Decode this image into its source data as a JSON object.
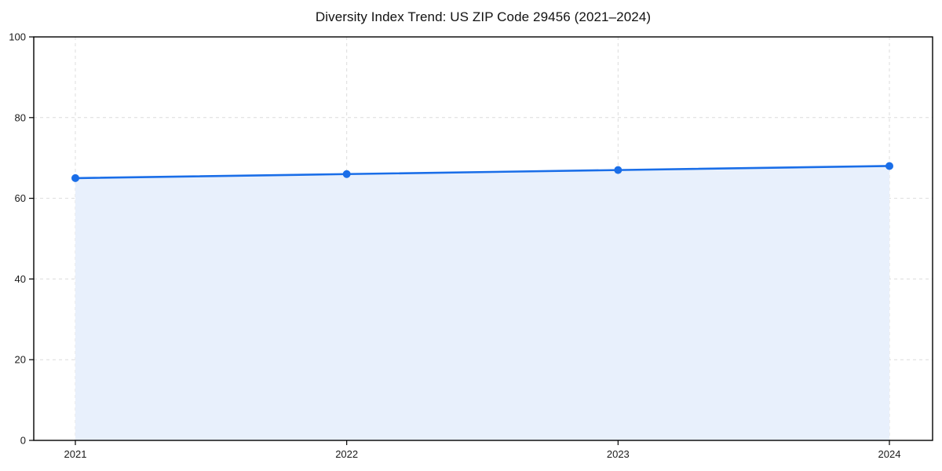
{
  "page": {
    "background": "#ffffff"
  },
  "chart_data": {
    "type": "area",
    "title": "Diversity Index Trend: US ZIP Code 29456 (2021–2024)",
    "categories": [
      "2021",
      "2022",
      "2023",
      "2024"
    ],
    "series": [
      {
        "name": "Diversity Index",
        "values": [
          65,
          66,
          67,
          68
        ]
      }
    ],
    "xlabel": "",
    "ylabel": "",
    "ylim": [
      0,
      100
    ],
    "yticks": [
      0,
      20,
      40,
      60,
      80,
      100
    ],
    "grid": "dashed-both-axes",
    "legend": "none",
    "marker": "circle",
    "colors": {
      "line": "#1a6ee8",
      "marker": "#1a6ee8",
      "fill": "#e8f0fc",
      "grid": "#dcdcdc",
      "spine": "#000000",
      "tick_text": "#1a1a1a"
    }
  }
}
